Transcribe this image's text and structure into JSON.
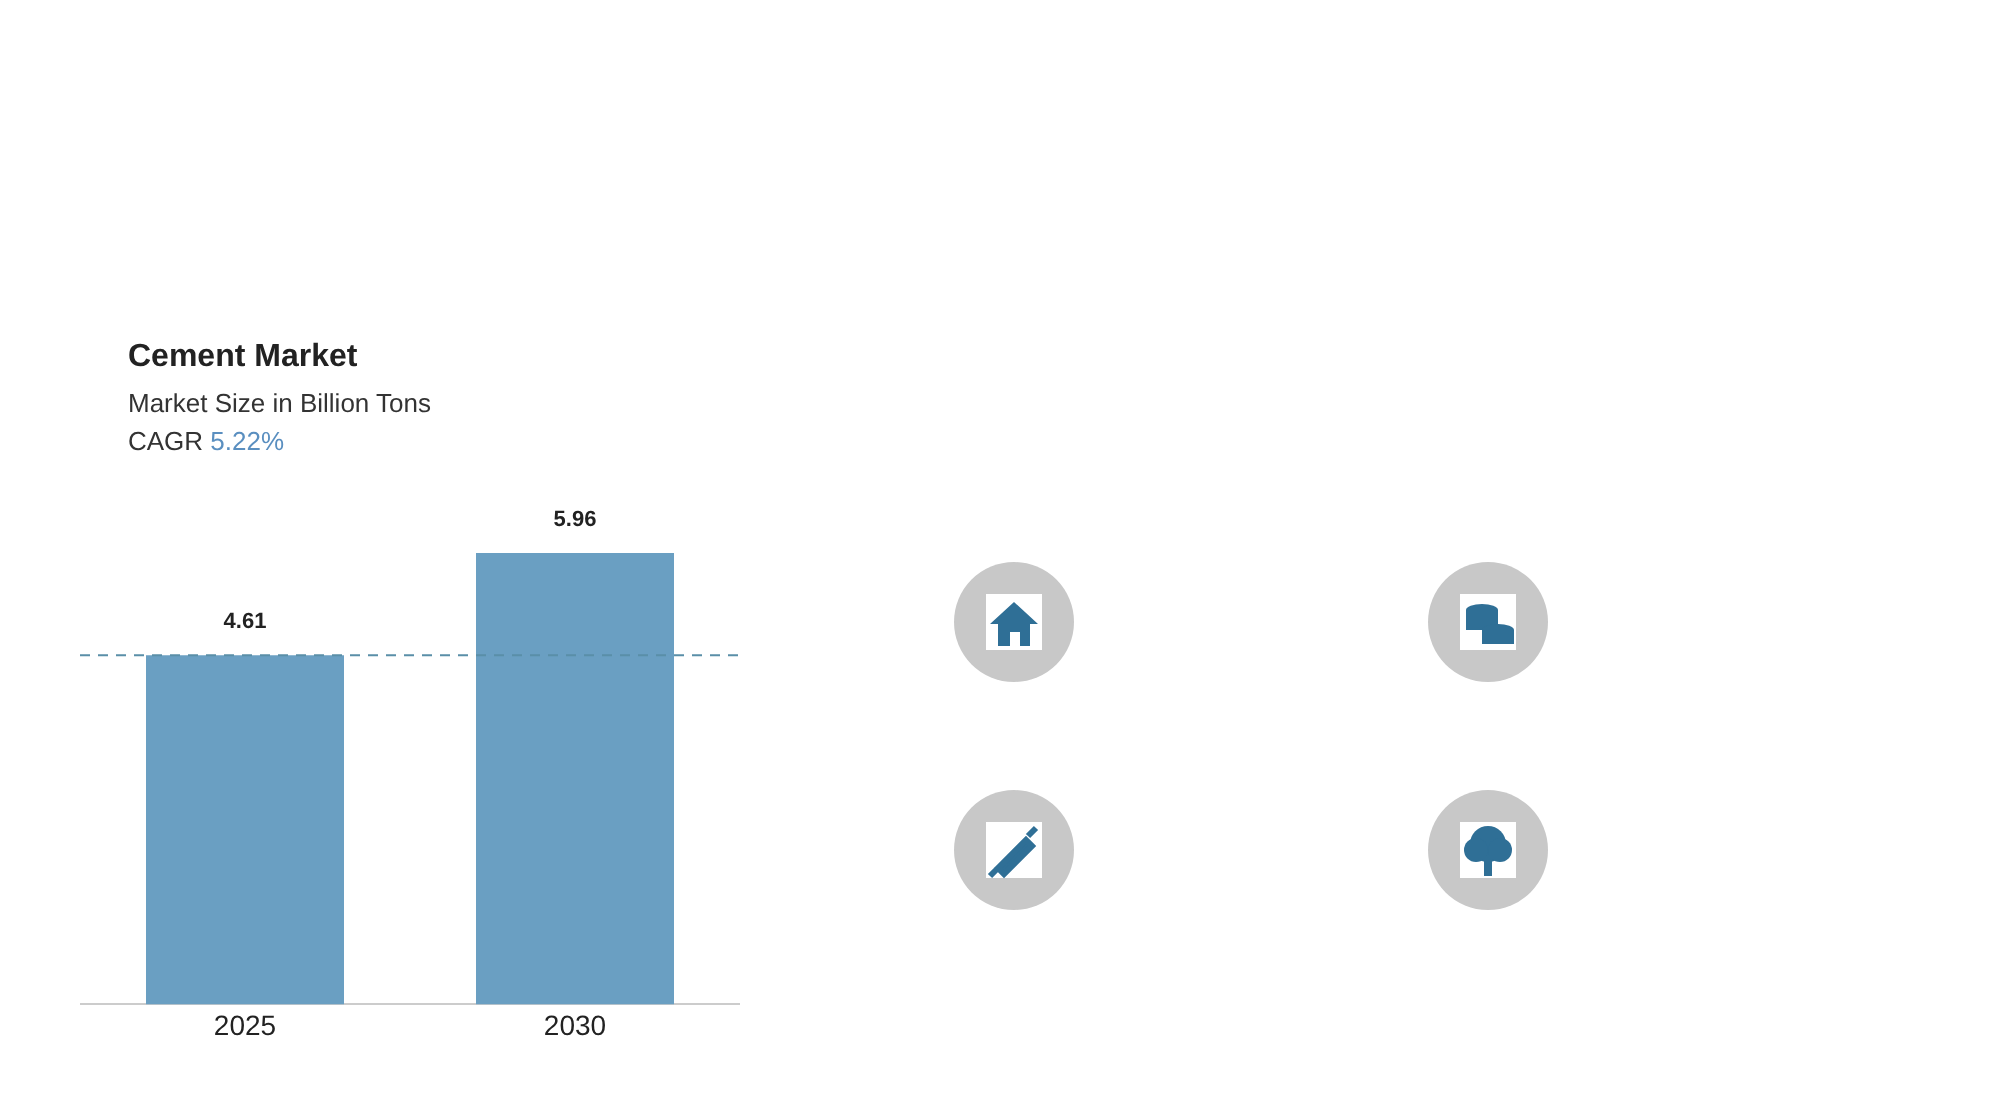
{
  "chart_data": {
    "type": "bar",
    "title": "Cement Market",
    "subtitle": "Market Size in Billion Tons",
    "annotations": [
      "CAGR 5.22%"
    ],
    "categories": [
      "2025",
      "2030"
    ],
    "values": [
      4.61,
      5.96
    ],
    "color": "#6a9fc2",
    "data_labels": true,
    "legend": false,
    "grid": false,
    "ref_lines": [
      {
        "axis": "y",
        "value": 4.61,
        "color": "#5a8fa8",
        "line_style": "dashed"
      }
    ]
  }
}
